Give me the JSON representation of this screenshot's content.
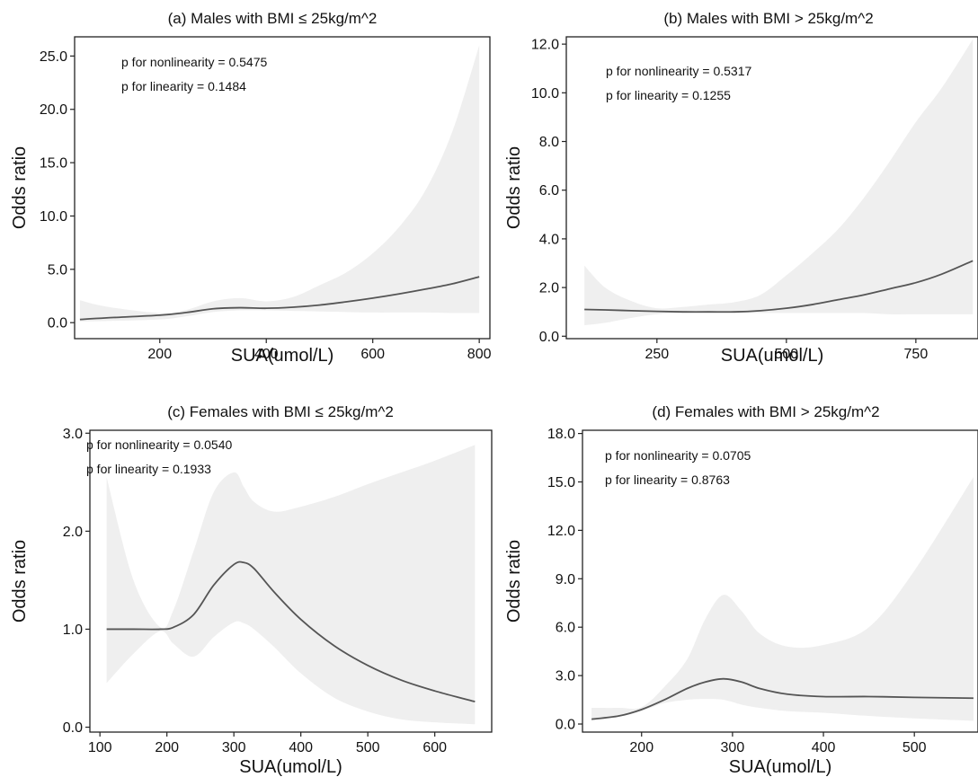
{
  "chart_data": [
    {
      "type": "line",
      "title": "(a) Males with BMI ≤ 25kg/m^2",
      "xlabel": "SUA(umol/L)",
      "ylabel": "Odds ratio",
      "xlim": [
        40,
        820
      ],
      "ylim": [
        -1.5,
        26.8
      ],
      "xticks": [
        200,
        400,
        600,
        800
      ],
      "xtick_labels": [
        "200",
        "400",
        "600",
        "800"
      ],
      "yticks": [
        0,
        5,
        10,
        15,
        20,
        25
      ],
      "ytick_labels": [
        "0.0",
        "5.0",
        "10.0",
        "15.0",
        "20.0",
        "25.0"
      ],
      "annotations": [
        "p for nonlinearity = 0.5475",
        "p for linearity = 0.1484"
      ],
      "grid": false,
      "series": [
        {
          "x": [
            50,
            100,
            200,
            250,
            300,
            350,
            400,
            450,
            500,
            550,
            600,
            650,
            700,
            750,
            800
          ],
          "y": [
            0.3,
            0.45,
            0.7,
            0.95,
            1.3,
            1.4,
            1.35,
            1.45,
            1.65,
            1.95,
            2.3,
            2.7,
            3.15,
            3.65,
            4.3
          ],
          "lower": [
            0.1,
            0.15,
            0.3,
            0.6,
            1.0,
            1.15,
            1.15,
            1.1,
            1.05,
            1.0,
            0.95,
            0.95,
            0.95,
            0.9,
            0.9
          ],
          "upper": [
            2.1,
            1.5,
            0.9,
            1.2,
            2.0,
            2.3,
            2.0,
            2.4,
            3.5,
            4.7,
            6.5,
            9.0,
            12.5,
            18.0,
            26.0
          ]
        }
      ]
    },
    {
      "type": "line",
      "title": "(b) Males with BMI > 25kg/m^2",
      "xlabel": "SUA(umol/L)",
      "ylabel": "Odds ratio",
      "xlim": [
        75,
        870
      ],
      "ylim": [
        -0.1,
        12.3
      ],
      "xticks": [
        250,
        500,
        750
      ],
      "xtick_labels": [
        "250",
        "500",
        "750"
      ],
      "yticks": [
        0,
        2,
        4,
        6,
        8,
        10,
        12
      ],
      "ytick_labels": [
        "0.0",
        "2.0",
        "4.0",
        "6.0",
        "8.0",
        "10.0",
        "12.0"
      ],
      "annotations": [
        "p for nonlinearity = 0.5317",
        "p for linearity = 0.1255"
      ],
      "grid": false,
      "series": [
        {
          "x": [
            110,
            150,
            200,
            250,
            300,
            350,
            400,
            450,
            500,
            550,
            600,
            650,
            700,
            750,
            800,
            860
          ],
          "y": [
            1.1,
            1.08,
            1.05,
            1.02,
            1.0,
            1.0,
            1.0,
            1.05,
            1.15,
            1.3,
            1.5,
            1.7,
            1.95,
            2.2,
            2.55,
            3.1
          ],
          "lower": [
            0.45,
            0.55,
            0.75,
            0.9,
            0.95,
            0.95,
            0.95,
            0.95,
            0.95,
            0.95,
            0.95,
            0.95,
            0.9,
            0.9,
            0.9,
            0.9
          ],
          "upper": [
            2.9,
            2.0,
            1.45,
            1.15,
            1.2,
            1.3,
            1.4,
            1.7,
            2.5,
            3.4,
            4.4,
            5.7,
            7.2,
            8.8,
            10.2,
            12.2
          ]
        }
      ]
    },
    {
      "type": "line",
      "title": "(c) Females with BMI ≤ 25kg/m^2",
      "xlabel": "SUA(umol/L)",
      "ylabel": "Odds ratio",
      "xlim": [
        85,
        685
      ],
      "ylim": [
        -0.05,
        3.03
      ],
      "xticks": [
        100,
        200,
        300,
        400,
        500,
        600
      ],
      "xtick_labels": [
        "100",
        "200",
        "300",
        "400",
        "500",
        "600"
      ],
      "yticks": [
        0,
        1,
        2,
        3
      ],
      "ytick_labels": [
        "0.0",
        "1.0",
        "2.0",
        "3.0"
      ],
      "annotations": [
        "p for nonlinearity = 0.0540",
        "p for linearity = 0.1933"
      ],
      "grid": false,
      "series": [
        {
          "x": [
            110,
            150,
            190,
            210,
            240,
            270,
            300,
            315,
            330,
            360,
            400,
            450,
            500,
            550,
            600,
            660
          ],
          "y": [
            1.0,
            1.0,
            1.0,
            1.02,
            1.15,
            1.45,
            1.66,
            1.68,
            1.62,
            1.38,
            1.1,
            0.83,
            0.63,
            0.48,
            0.37,
            0.26
          ],
          "lower": [
            0.45,
            0.75,
            0.98,
            0.85,
            0.72,
            0.92,
            1.07,
            1.06,
            1.0,
            0.82,
            0.55,
            0.3,
            0.16,
            0.08,
            0.05,
            0.03
          ],
          "upper": [
            2.55,
            1.5,
            1.02,
            1.2,
            1.8,
            2.4,
            2.6,
            2.45,
            2.3,
            2.2,
            2.25,
            2.35,
            2.48,
            2.6,
            2.72,
            2.88
          ]
        }
      ]
    },
    {
      "type": "line",
      "title": "(d) Females with BMI > 25kg/m^2",
      "xlabel": "SUA(umol/L)",
      "ylabel": "Odds ratio",
      "xlim": [
        135,
        570
      ],
      "ylim": [
        -0.5,
        18.2
      ],
      "xticks": [
        200,
        300,
        400,
        500
      ],
      "xtick_labels": [
        "200",
        "300",
        "400",
        "500"
      ],
      "yticks": [
        0,
        3,
        6,
        9,
        12,
        15,
        18
      ],
      "ytick_labels": [
        "0.0",
        "3.0",
        "6.0",
        "9.0",
        "12.0",
        "15.0",
        "18.0"
      ],
      "annotations": [
        "p for nonlinearity = 0.0705",
        "p for linearity = 0.8763"
      ],
      "grid": false,
      "series": [
        {
          "x": [
            145,
            175,
            200,
            225,
            250,
            270,
            290,
            310,
            330,
            360,
            400,
            450,
            500,
            565
          ],
          "y": [
            0.3,
            0.5,
            0.9,
            1.5,
            2.2,
            2.6,
            2.8,
            2.6,
            2.2,
            1.85,
            1.7,
            1.7,
            1.65,
            1.6
          ],
          "lower": [
            0.2,
            0.45,
            0.8,
            1.3,
            1.5,
            1.55,
            1.5,
            1.2,
            1.0,
            0.8,
            0.7,
            0.5,
            0.35,
            0.2
          ],
          "upper": [
            1.0,
            1.0,
            1.05,
            2.3,
            4.0,
            6.5,
            8.0,
            7.0,
            5.6,
            4.8,
            4.9,
            6.0,
            9.5,
            15.3
          ]
        }
      ]
    }
  ]
}
